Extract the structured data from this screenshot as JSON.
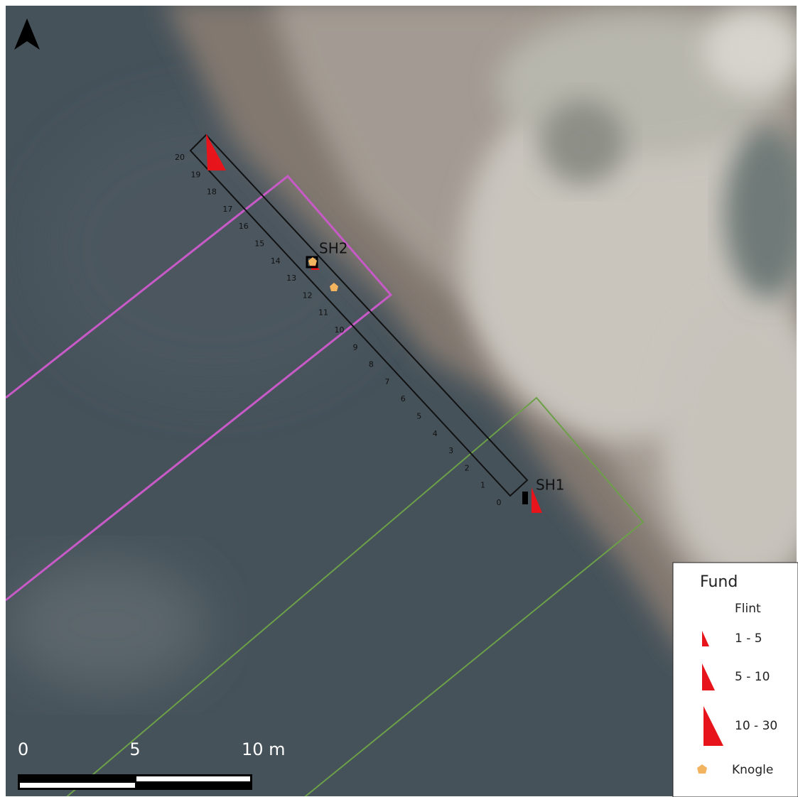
{
  "map": {
    "transect_labels": [
      "0",
      "1",
      "2",
      "3",
      "4",
      "5",
      "6",
      "7",
      "8",
      "9",
      "10",
      "11",
      "12",
      "13",
      "14",
      "15",
      "16",
      "17",
      "18",
      "19",
      "20"
    ],
    "sites": [
      {
        "label": "SH1"
      },
      {
        "label": "SH2"
      }
    ],
    "legend": {
      "title": "Fund",
      "group": "Flint",
      "items": [
        "1 - 5",
        "5 - 10",
        "10 - 30"
      ],
      "bone": "Knogle"
    },
    "scale_bar": {
      "labels": [
        "0",
        "5",
        "10 m"
      ]
    }
  }
}
